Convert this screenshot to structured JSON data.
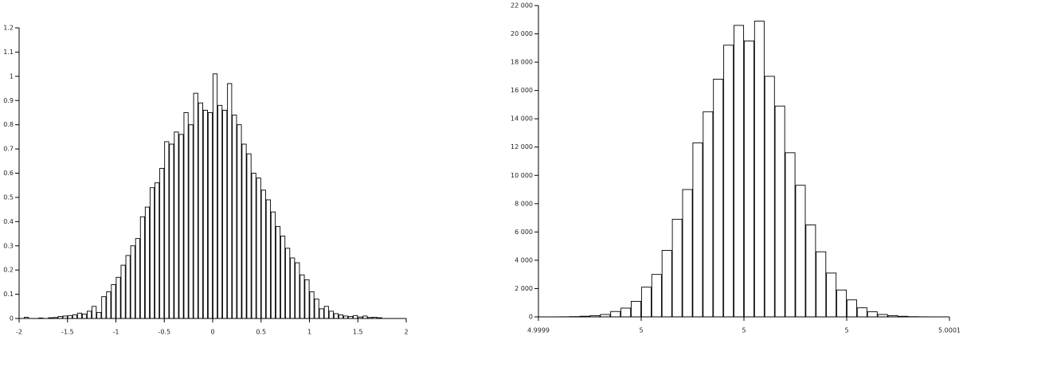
{
  "chart_data": [
    {
      "type": "histogram",
      "bins": [
        -2,
        -1.95,
        -1.9,
        -1.85,
        -1.8,
        -1.75,
        -1.7,
        -1.65,
        -1.6,
        -1.55,
        -1.5,
        -1.45,
        -1.4,
        -1.35,
        -1.3,
        -1.25,
        -1.2,
        -1.15,
        -1.1,
        -1.05,
        -1,
        -0.95,
        -0.9,
        -0.85,
        -0.8,
        -0.75,
        -0.7,
        -0.65,
        -0.6,
        -0.55,
        -0.5,
        -0.45,
        -0.4,
        -0.35,
        -0.3,
        -0.25,
        -0.2,
        -0.15,
        -0.1,
        -0.05,
        0,
        0.05,
        0.1,
        0.15,
        0.2,
        0.25,
        0.3,
        0.35,
        0.4,
        0.45,
        0.5,
        0.55,
        0.6,
        0.65,
        0.7,
        0.75,
        0.8,
        0.85,
        0.9,
        0.95,
        1,
        1.05,
        1.1,
        1.15,
        1.2,
        1.25,
        1.3,
        1.35,
        1.4,
        1.45,
        1.5,
        1.55,
        1.6,
        1.65,
        1.7,
        1.75,
        1.8,
        1.85,
        1.9,
        1.95,
        2
      ],
      "values": [
        0,
        0.005,
        0,
        0,
        0.002,
        0,
        0.003,
        0.004,
        0.008,
        0.01,
        0.012,
        0.015,
        0.022,
        0.018,
        0.03,
        0.05,
        0.025,
        0.09,
        0.11,
        0.14,
        0.17,
        0.22,
        0.26,
        0.3,
        0.33,
        0.42,
        0.46,
        0.54,
        0.56,
        0.62,
        0.73,
        0.72,
        0.77,
        0.76,
        0.85,
        0.8,
        0.93,
        0.89,
        0.86,
        0.85,
        1.01,
        0.88,
        0.86,
        0.97,
        0.84,
        0.8,
        0.72,
        0.68,
        0.6,
        0.58,
        0.53,
        0.49,
        0.44,
        0.38,
        0.34,
        0.29,
        0.25,
        0.23,
        0.18,
        0.16,
        0.11,
        0.08,
        0.04,
        0.05,
        0.03,
        0.02,
        0.015,
        0.01,
        0.008,
        0.012,
        0.006,
        0.01,
        0.004,
        0.005,
        0.003,
        0,
        0,
        0,
        0,
        0
      ],
      "color": "#ffffff",
      "edgecolor": "#000000",
      "xlim": [
        -2,
        2
      ],
      "xticks": [
        -2,
        -1.5,
        -1,
        -0.5,
        0,
        0.5,
        1,
        1.5,
        2
      ],
      "ylim": [
        0,
        1.2
      ],
      "yticks": [
        0,
        0.1,
        0.2,
        0.3,
        0.4,
        0.5,
        0.6,
        0.7,
        0.8,
        0.9,
        1,
        1.1,
        1.2
      ]
    },
    {
      "type": "histogram",
      "bins": [
        4.9999,
        4.999905,
        4.99991,
        4.999915,
        4.99992,
        4.999925,
        4.99993,
        4.999935,
        4.99994,
        4.999945,
        4.99995,
        4.999955,
        4.99996,
        4.999965,
        4.99997,
        4.999975,
        4.99998,
        4.999985,
        4.99999,
        4.999995,
        5,
        5.000005,
        5.00001,
        5.000015,
        5.00002,
        5.000025,
        5.00003,
        5.000035,
        5.00004,
        5.000045,
        5.00005,
        5.000055,
        5.00006,
        5.000065,
        5.00007,
        5.000075,
        5.00008,
        5.000085,
        5.00009,
        5.000095,
        5.0001
      ],
      "values": [
        0,
        3,
        8,
        20,
        45,
        90,
        170,
        380,
        620,
        1100,
        2100,
        3000,
        4700,
        6900,
        9000,
        12300,
        14500,
        16800,
        19200,
        20600,
        19500,
        20900,
        17000,
        14900,
        11600,
        9300,
        6500,
        4600,
        3100,
        1900,
        1200,
        640,
        360,
        170,
        90,
        40,
        15,
        6,
        2,
        0
      ],
      "color": "#ffffff",
      "edgecolor": "#000000",
      "xlim": [
        4.9999,
        5.0001
      ],
      "xticks": [
        4.9999,
        {
          "value": 4.99995,
          "label": "5"
        },
        5,
        {
          "value": 5.00005,
          "label": "5"
        },
        5.0001
      ],
      "ylim": [
        0,
        22000
      ],
      "yticks": [
        0,
        {
          "value": 2000,
          "label": "2 000"
        },
        {
          "value": 4000,
          "label": "4 000"
        },
        {
          "value": 6000,
          "label": "6 000"
        },
        {
          "value": 8000,
          "label": "8 000"
        },
        {
          "value": 10000,
          "label": "10 000"
        },
        {
          "value": 12000,
          "label": "12 000"
        },
        {
          "value": 14000,
          "label": "14 000"
        },
        {
          "value": 16000,
          "label": "16 000"
        },
        {
          "value": 18000,
          "label": "18 000"
        },
        {
          "value": 20000,
          "label": "20 000"
        },
        {
          "value": 22000,
          "label": "22 000"
        }
      ]
    }
  ]
}
